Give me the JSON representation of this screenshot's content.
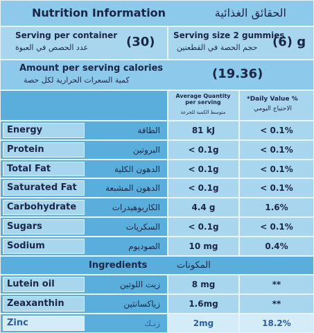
{
  "header": {
    "title": "Nutrition Information",
    "title_ar": "الحقائق الغذائية"
  },
  "serving": {
    "per_container_label": "Serving per container",
    "per_container_label_ar": "عدد الحصص في العبوة",
    "per_container_value": "(30)",
    "size_label": "Serving size 2 gummies",
    "size_label_ar": "حجم الحصة في القطعتين",
    "size_value": "(6) g"
  },
  "calories": {
    "label": "Amount per serving calories",
    "label_ar": "كمية السعرات الحرارية لكل حصة",
    "value": "(19.36)"
  },
  "columns": {
    "quantity": "Average Quantity per serving",
    "quantity_ar": "متوسط الكمية للجرعة",
    "daily_value": "*Daily Value %",
    "daily_value_ar": "الاحتياج اليومي"
  },
  "nutrients": [
    {
      "name": "Energy",
      "name_ar": "الطاقة",
      "quantity": "81 kJ",
      "daily_value": "< 0.1%"
    },
    {
      "name": "Protein",
      "name_ar": "البروتين",
      "quantity": "< 0.1g",
      "daily_value": "< 0.1%"
    },
    {
      "name": "Total Fat",
      "name_ar": "الدهون الكلية",
      "quantity": "< 0.1g",
      "daily_value": "< 0.1%"
    },
    {
      "name": "Saturated Fat",
      "name_ar": "الدهون المشبعة",
      "quantity": "< 0.1g",
      "daily_value": "< 0.1%"
    },
    {
      "name": "Carbohydrate",
      "name_ar": "الكاربوهيدرات",
      "quantity": "4.4 g",
      "daily_value": "1.6%"
    },
    {
      "name": "Sugars",
      "name_ar": "السكريات",
      "quantity": "< 0.1g",
      "daily_value": "< 0.1%"
    },
    {
      "name": "Sodium",
      "name_ar": "الصوديوم",
      "quantity": "10 mg",
      "daily_value": "0.4%"
    }
  ],
  "ingredients_heading": {
    "label": "Ingredients",
    "label_ar": "المكونات"
  },
  "ingredients": [
    {
      "name": "Lutein oil",
      "name_ar": "زيت اللوتين",
      "quantity": "8 mg",
      "daily_value": "**"
    },
    {
      "name": "Zeaxanthin",
      "name_ar": "زياكسانثين",
      "quantity": "1.6mg",
      "daily_value": "**"
    },
    {
      "name": "Zinc",
      "name_ar": "زنـك",
      "quantity": "2mg",
      "daily_value": "18.2%"
    }
  ]
}
